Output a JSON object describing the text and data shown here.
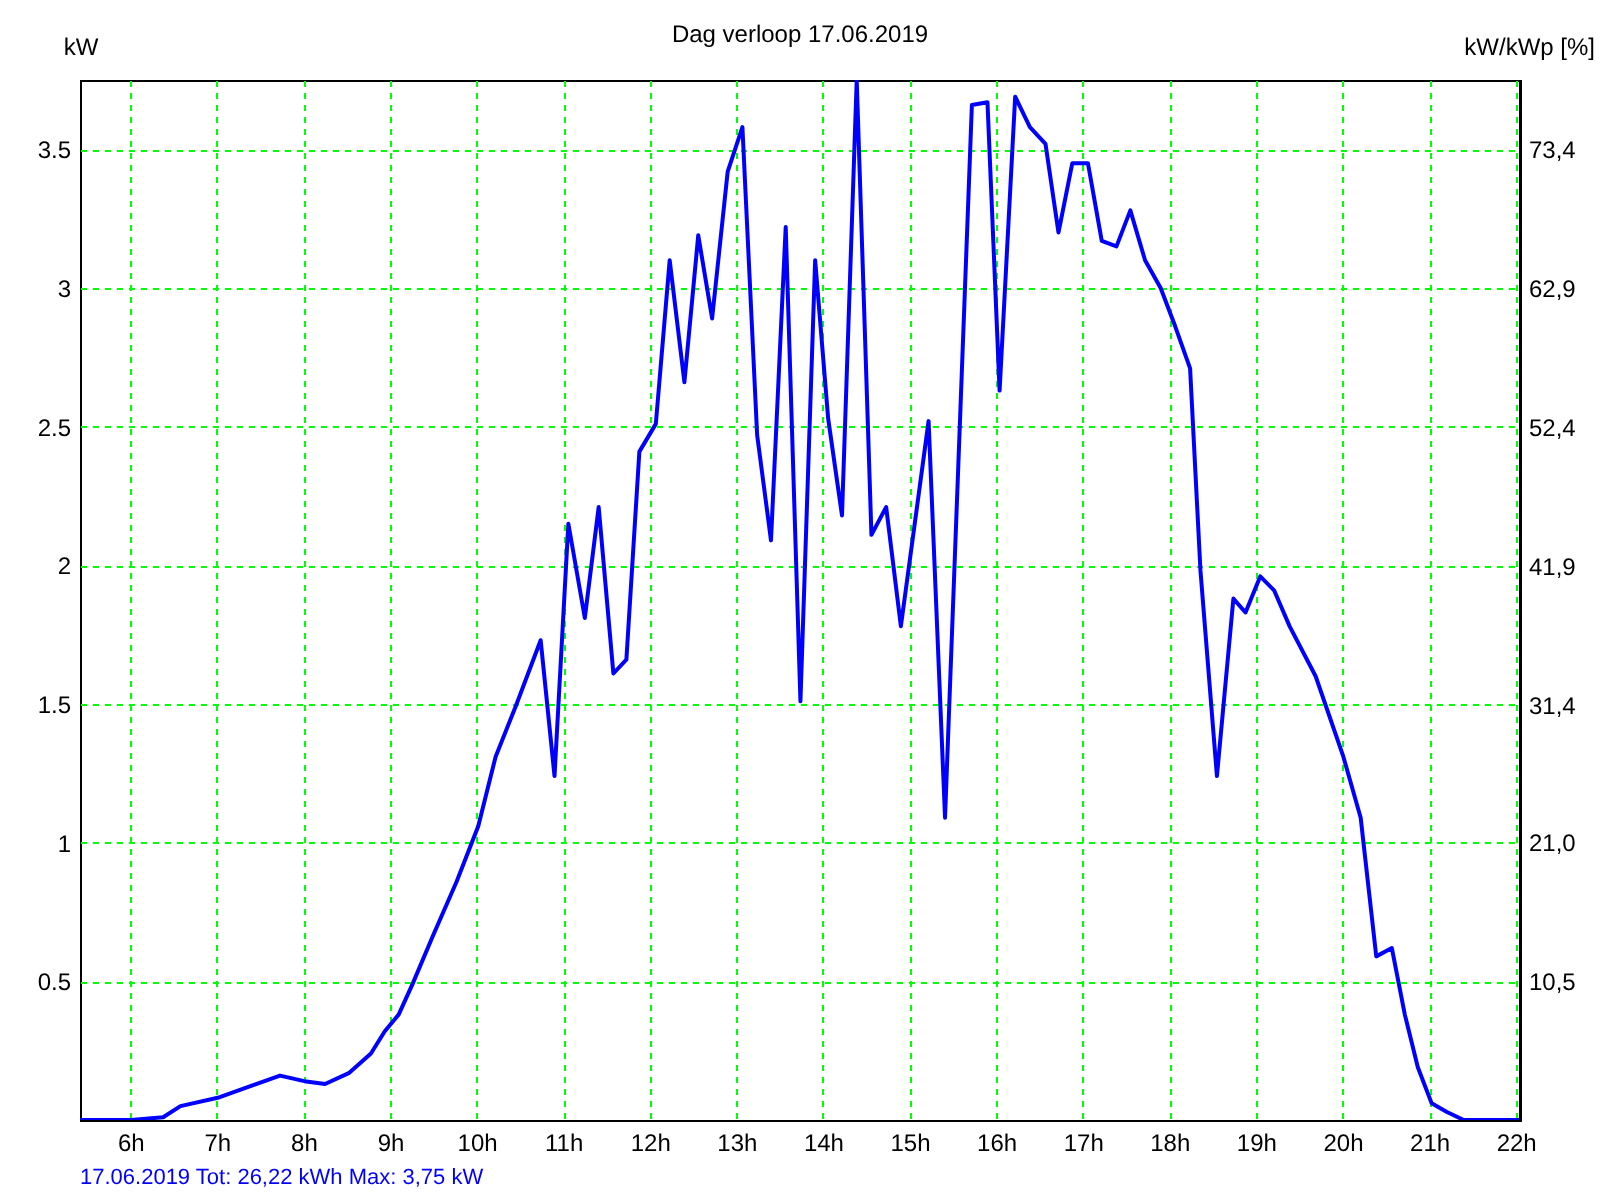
{
  "chart_data": {
    "type": "line",
    "title": "Dag verloop 17.06.2019",
    "ylabel": "kW",
    "y2label": "kW/kWp [%]",
    "annotations": [
      "17.06.2019 Tot: 26,22 kWh Max: 3,75 kW"
    ],
    "x": [
      5.42,
      6.01,
      6.38,
      6.58,
      7.01,
      7.73,
      8.01,
      8.25,
      8.53,
      8.78,
      8.94,
      9.1,
      9.26,
      9.49,
      9.77,
      10.02,
      10.22,
      10.45,
      10.74,
      10.9,
      11.06,
      11.25,
      11.41,
      11.58,
      11.73,
      11.88,
      12.07,
      12.23,
      12.4,
      12.56,
      12.72,
      12.9,
      13.07,
      13.24,
      13.4,
      13.57,
      13.74,
      13.91,
      14.06,
      14.22,
      14.39,
      14.56,
      14.73,
      14.9,
      15.22,
      15.41,
      15.72,
      15.9,
      16.04,
      16.22,
      16.39,
      16.57,
      16.72,
      16.88,
      17.06,
      17.22,
      17.39,
      17.55,
      17.72,
      17.9,
      18.07,
      18.24,
      18.36,
      18.55,
      18.74,
      18.88,
      19.05,
      19.21,
      19.39,
      19.69,
      20.01,
      20.21,
      20.39,
      20.57,
      20.72,
      20.87,
      21.03,
      21.2,
      21.4,
      22.05
    ],
    "values": [
      0,
      0,
      0.01,
      0.05,
      0.08,
      0.16,
      0.14,
      0.13,
      0.17,
      0.24,
      0.32,
      0.38,
      0.49,
      0.66,
      0.86,
      1.06,
      1.31,
      1.49,
      1.73,
      1.24,
      2.15,
      1.81,
      2.21,
      1.61,
      1.66,
      2.41,
      2.51,
      3.1,
      2.66,
      3.19,
      2.89,
      3.42,
      3.58,
      2.47,
      2.09,
      3.22,
      1.51,
      3.1,
      2.53,
      2.18,
      3.75,
      2.11,
      2.21,
      1.78,
      2.52,
      1.09,
      3.66,
      3.67,
      2.63,
      3.69,
      3.58,
      3.52,
      3.2,
      3.45,
      3.45,
      3.17,
      3.15,
      3.28,
      3.1,
      3.0,
      2.86,
      2.71,
      1.98,
      1.24,
      1.88,
      1.83,
      1.96,
      1.91,
      1.78,
      1.6,
      1.31,
      1.09,
      0.59,
      0.62,
      0.38,
      0.19,
      0.06,
      0.03,
      0,
      0
    ],
    "color": "#0000ff",
    "xlim": [
      5.42,
      22.05
    ],
    "xticks": [
      {
        "value": 6,
        "label": "6h"
      },
      {
        "value": 7,
        "label": "7h"
      },
      {
        "value": 8,
        "label": "8h"
      },
      {
        "value": 9,
        "label": "9h"
      },
      {
        "value": 10,
        "label": "10h"
      },
      {
        "value": 11,
        "label": "11h"
      },
      {
        "value": 12,
        "label": "12h"
      },
      {
        "value": 13,
        "label": "13h"
      },
      {
        "value": 14,
        "label": "14h"
      },
      {
        "value": 15,
        "label": "15h"
      },
      {
        "value": 16,
        "label": "16h"
      },
      {
        "value": 17,
        "label": "17h"
      },
      {
        "value": 18,
        "label": "18h"
      },
      {
        "value": 19,
        "label": "19h"
      },
      {
        "value": 20,
        "label": "20h"
      },
      {
        "value": 21,
        "label": "21h"
      },
      {
        "value": 22,
        "label": "22h"
      }
    ],
    "ylim": [
      0,
      3.75
    ],
    "yticks": [
      0.5,
      1,
      1.5,
      2,
      2.5,
      3,
      3.5
    ],
    "y2lim": [
      0,
      78.6
    ],
    "y2ticks": [
      {
        "value": 10.5,
        "label": "10,5"
      },
      {
        "value": 21.0,
        "label": "21,0"
      },
      {
        "value": 31.4,
        "label": "31,4"
      },
      {
        "value": 41.9,
        "label": "41,9"
      },
      {
        "value": 52.4,
        "label": "52,4"
      },
      {
        "value": 62.9,
        "label": "62,9"
      },
      {
        "value": 73.4,
        "label": "73,4"
      }
    ],
    "grid": true
  }
}
